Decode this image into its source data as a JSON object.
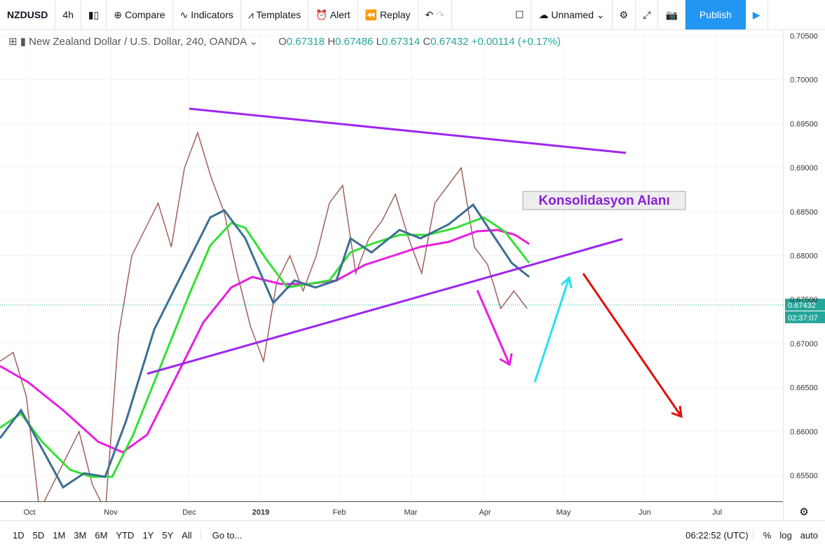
{
  "toolbar": {
    "symbol": "NZDUSD",
    "interval": "4h",
    "compare": "Compare",
    "indicators": "Indicators",
    "templates": "Templates",
    "alert": "Alert",
    "replay": "Replay",
    "layout": "Unnamed",
    "publish": "Publish"
  },
  "header": {
    "title": "New Zealand Dollar / U.S. Dollar, 240, OANDA",
    "open_label": "O",
    "open": "0.67318",
    "high_label": "H",
    "high": "0.67486",
    "low_label": "L",
    "low": "0.67314",
    "close_label": "C",
    "close": "0.67432",
    "change": "+0.00114 (+0.17%)"
  },
  "price_axis": {
    "labels": [
      "0.70500",
      "0.70000",
      "0.69500",
      "0.69000",
      "0.68500",
      "0.68000",
      "0.67500",
      "0.67000",
      "0.66500",
      "0.66000",
      "0.65500"
    ],
    "last": "0.67432",
    "countdown": "02:37:07"
  },
  "time_axis": {
    "labels": [
      "Oct",
      "Nov",
      "Dec",
      "2019",
      "Feb",
      "Mar",
      "Apr",
      "May",
      "Jun",
      "Jul"
    ]
  },
  "price": {
    "close": [
      0.668,
      0.669,
      0.664,
      0.651,
      0.654,
      0.657,
      0.66,
      0.654,
      0.651,
      0.671,
      0.68,
      0.683,
      0.686,
      0.681,
      0.69,
      0.694,
      0.689,
      0.685,
      0.678,
      0.672,
      0.668,
      0.677,
      0.68,
      0.676,
      0.68,
      0.686,
      0.688,
      0.678,
      0.682,
      0.684,
      0.687,
      0.682,
      0.678,
      0.686,
      0.688,
      0.69,
      0.681,
      0.679,
      0.674,
      0.676,
      0.674
    ]
  },
  "annotation": "Konsolidasyon Alanı",
  "bottom": {
    "ranges": [
      "1D",
      "5D",
      "1M",
      "3M",
      "6M",
      "YTD",
      "1Y",
      "5Y",
      "All"
    ],
    "goto": "Go to...",
    "clock": "06:22:52 (UTC)",
    "percent": "%",
    "log": "log",
    "auto": "auto"
  }
}
